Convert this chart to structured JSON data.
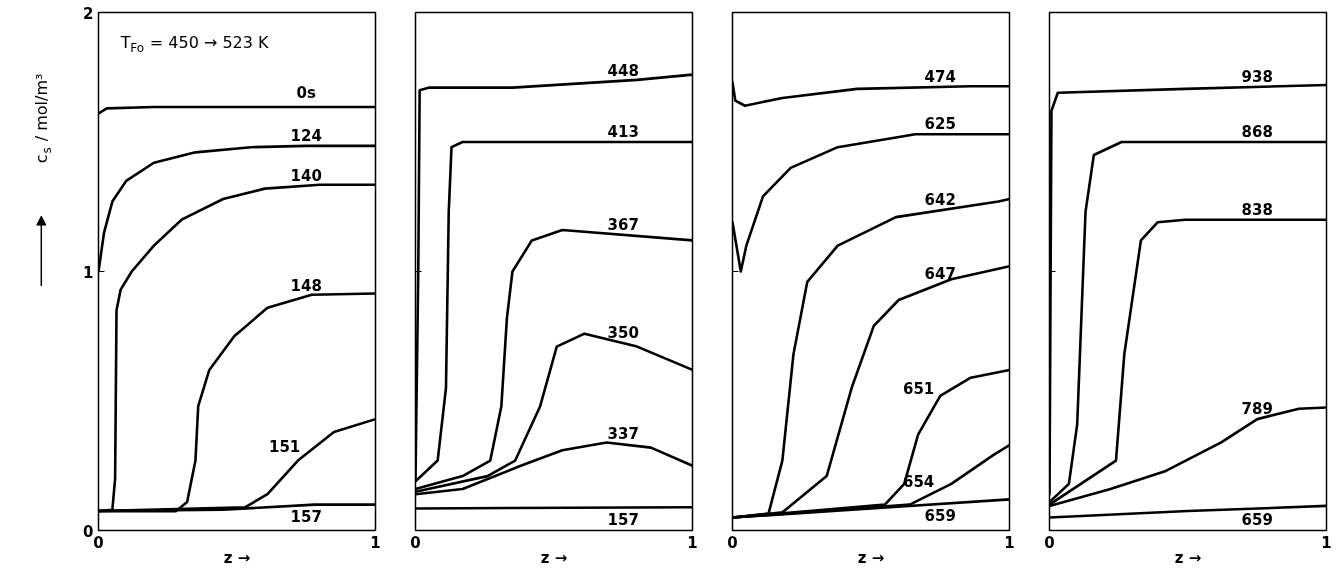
{
  "chart_data": [
    {
      "type": "line",
      "xlabel": "z →",
      "ylabel": "c$_{s}$ / mol/m³",
      "xlim": [
        0,
        1
      ],
      "ylim": [
        0,
        2
      ],
      "xticks": [
        0,
        1
      ],
      "yticks": [
        0,
        1,
        2
      ],
      "annotations": [
        "T$_{Fo}$ = 450 → 523 K"
      ],
      "series": [
        {
          "name": "0s",
          "color": "#000000",
          "x": [
            0,
            0.03,
            0.2,
            1
          ],
          "values": [
            1.61,
            1.63,
            1.635,
            1.635
          ]
        },
        {
          "name": "124",
          "color": "#000000",
          "x": [
            0,
            0.02,
            0.05,
            0.1,
            0.2,
            0.35,
            0.55,
            0.75,
            1
          ],
          "values": [
            1.0,
            1.15,
            1.27,
            1.35,
            1.42,
            1.46,
            1.48,
            1.485,
            1.485
          ]
        },
        {
          "name": "140",
          "color": "#000000",
          "x": [
            0,
            0.05,
            0.06,
            0.065,
            0.08,
            0.12,
            0.2,
            0.3,
            0.45,
            0.6,
            0.8,
            1
          ],
          "values": [
            0.075,
            0.08,
            0.2,
            0.85,
            0.93,
            1.0,
            1.1,
            1.2,
            1.28,
            1.32,
            1.335,
            1.335
          ]
        },
        {
          "name": "148",
          "color": "#000000",
          "x": [
            0,
            0.28,
            0.32,
            0.35,
            0.36,
            0.4,
            0.49,
            0.61,
            0.77,
            1
          ],
          "values": [
            0.075,
            0.075,
            0.11,
            0.27,
            0.48,
            0.62,
            0.75,
            0.86,
            0.91,
            0.915
          ]
        },
        {
          "name": "151",
          "color": "#000000",
          "x": [
            0,
            0.53,
            0.61,
            0.72,
            0.85,
            1
          ],
          "values": [
            0.075,
            0.09,
            0.14,
            0.27,
            0.38,
            0.43
          ]
        },
        {
          "name": "157",
          "color": "#000000",
          "x": [
            0,
            0.45,
            0.78,
            1
          ],
          "values": [
            0.075,
            0.08,
            0.1,
            0.1
          ]
        }
      ]
    },
    {
      "type": "line",
      "xlabel": "z →",
      "xlim": [
        0,
        1
      ],
      "ylim": [
        0,
        2
      ],
      "xticks": [
        0,
        1
      ],
      "yticks": [
        0,
        1,
        2
      ],
      "tick_labels": "x",
      "series": [
        {
          "name": "448",
          "color": "#000000",
          "x": [
            0,
            0.01,
            0.015,
            0.05,
            0.35,
            0.8,
            1
          ],
          "values": [
            0.2,
            1.0,
            1.7,
            1.71,
            1.71,
            1.74,
            1.76
          ]
        },
        {
          "name": "413",
          "color": "#000000",
          "x": [
            0,
            0.08,
            0.11,
            0.12,
            0.13,
            0.17,
            1
          ],
          "values": [
            0.19,
            0.27,
            0.55,
            1.23,
            1.48,
            1.5,
            1.5
          ]
        },
        {
          "name": "367",
          "color": "#000000",
          "x": [
            0,
            0.17,
            0.27,
            0.31,
            0.33,
            0.35,
            0.42,
            0.53,
            1
          ],
          "values": [
            0.16,
            0.21,
            0.27,
            0.48,
            0.82,
            1.0,
            1.12,
            1.16,
            1.12
          ]
        },
        {
          "name": "350",
          "color": "#000000",
          "x": [
            0,
            0.26,
            0.36,
            0.45,
            0.51,
            0.61,
            0.8,
            1
          ],
          "values": [
            0.15,
            0.21,
            0.27,
            0.48,
            0.71,
            0.76,
            0.71,
            0.62
          ]
        },
        {
          "name": "337",
          "color": "#000000",
          "x": [
            0,
            0.17,
            0.38,
            0.53,
            0.69,
            0.85,
            1
          ],
          "values": [
            0.14,
            0.16,
            0.25,
            0.31,
            0.34,
            0.32,
            0.25
          ]
        },
        {
          "name": "157",
          "color": "#000000",
          "x": [
            0,
            1
          ],
          "values": [
            0.085,
            0.09
          ]
        }
      ]
    },
    {
      "type": "line",
      "xlabel": "z →",
      "xlim": [
        0,
        1
      ],
      "ylim": [
        0,
        2
      ],
      "xticks": [
        0,
        1
      ],
      "yticks": [
        0,
        1,
        2
      ],
      "tick_labels": "x",
      "series": [
        {
          "name": "474",
          "color": "#000000",
          "x": [
            0,
            0.01,
            0.045,
            0.18,
            0.45,
            0.86,
            1
          ],
          "values": [
            1.73,
            1.66,
            1.64,
            1.67,
            1.705,
            1.715,
            1.715
          ]
        },
        {
          "name": "625",
          "color": "#000000",
          "x": [
            0,
            0.03,
            0.05,
            0.11,
            0.21,
            0.38,
            0.66,
            1
          ],
          "values": [
            1.19,
            1.0,
            1.1,
            1.29,
            1.4,
            1.48,
            1.53,
            1.53
          ]
        },
        {
          "name": "642",
          "color": "#000000",
          "x": [
            0,
            0.13,
            0.18,
            0.22,
            0.27,
            0.38,
            0.59,
            0.96,
            1
          ],
          "values": [
            0.05,
            0.065,
            0.27,
            0.68,
            0.96,
            1.1,
            1.21,
            1.27,
            1.28
          ]
        },
        {
          "name": "647",
          "color": "#000000",
          "x": [
            0,
            0.18,
            0.34,
            0.43,
            0.51,
            0.6,
            0.79,
            1
          ],
          "values": [
            0.05,
            0.07,
            0.21,
            0.55,
            0.79,
            0.89,
            0.97,
            1.02
          ]
        },
        {
          "name": "651",
          "color": "#000000",
          "x": [
            0,
            0.55,
            0.62,
            0.67,
            0.75,
            0.86,
            1
          ],
          "values": [
            0.05,
            0.1,
            0.18,
            0.37,
            0.52,
            0.59,
            0.62
          ]
        },
        {
          "name": "654",
          "color": "#000000",
          "x": [
            0,
            0.64,
            0.79,
            0.94,
            1
          ],
          "values": [
            0.05,
            0.1,
            0.18,
            0.29,
            0.33
          ]
        },
        {
          "name": "659",
          "color": "#000000",
          "x": [
            0,
            0.5,
            1
          ],
          "values": [
            0.05,
            0.085,
            0.12
          ]
        }
      ]
    },
    {
      "type": "line",
      "xlabel": "z →",
      "xlim": [
        0,
        1
      ],
      "ylim": [
        0,
        2
      ],
      "xticks": [
        0,
        1
      ],
      "yticks": [
        0,
        1,
        2
      ],
      "tick_labels": "x",
      "series": [
        {
          "name": "938",
          "color": "#000000",
          "x": [
            0,
            0.007,
            0.03,
            0.49,
            1
          ],
          "values": [
            0.14,
            1.62,
            1.69,
            1.705,
            1.72
          ]
        },
        {
          "name": "868",
          "color": "#000000",
          "x": [
            0,
            0.07,
            0.1,
            0.13,
            0.16,
            0.26,
            1
          ],
          "values": [
            0.11,
            0.18,
            0.41,
            1.23,
            1.45,
            1.5,
            1.5
          ]
        },
        {
          "name": "838",
          "color": "#000000",
          "x": [
            0,
            0.24,
            0.27,
            0.33,
            0.39,
            0.49,
            1
          ],
          "values": [
            0.1,
            0.27,
            0.68,
            1.12,
            1.19,
            1.2,
            1.2
          ]
        },
        {
          "name": "789",
          "color": "#000000",
          "x": [
            0,
            0.22,
            0.42,
            0.62,
            0.75,
            0.9,
            1
          ],
          "values": [
            0.095,
            0.16,
            0.23,
            0.34,
            0.43,
            0.47,
            0.475
          ]
        },
        {
          "name": "659",
          "color": "#000000",
          "x": [
            0,
            0.5,
            1
          ],
          "values": [
            0.05,
            0.075,
            0.095
          ]
        }
      ]
    }
  ]
}
